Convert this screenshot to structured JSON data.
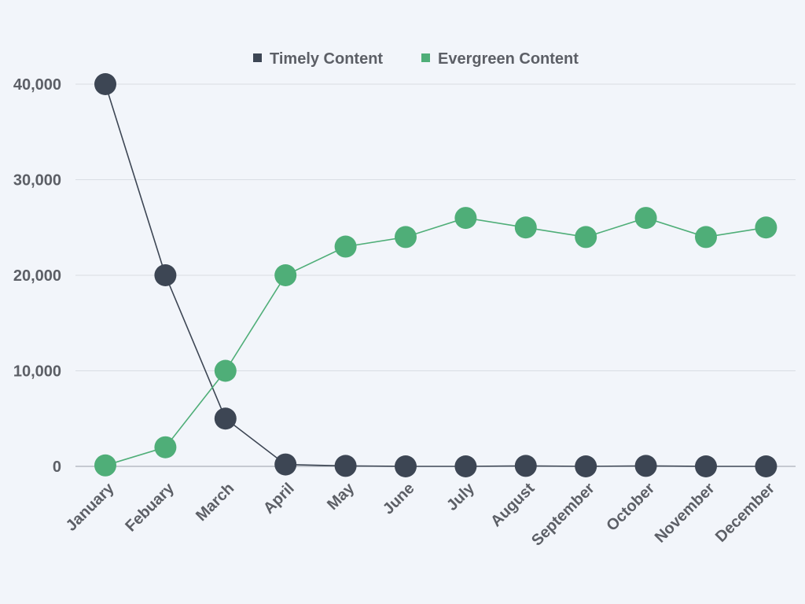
{
  "chart_data": {
    "type": "line",
    "title": "",
    "xlabel": "",
    "ylabel": "",
    "categories": [
      "January",
      "Febuary",
      "March",
      "April",
      "May",
      "June",
      "July",
      "August",
      "September",
      "October",
      "November",
      "December"
    ],
    "ylim": [
      0,
      40000
    ],
    "yticks": [
      0,
      10000,
      20000,
      30000,
      40000
    ],
    "ytick_labels": [
      "0",
      "10,000",
      "20,000",
      "30,000",
      "40,000"
    ],
    "grid": true,
    "legend_position": "top",
    "series": [
      {
        "name": "Timely Content",
        "color": "#3d4654",
        "values": [
          40000,
          20000,
          5000,
          200,
          50,
          0,
          0,
          50,
          0,
          50,
          0,
          0
        ]
      },
      {
        "name": "Evergreen Content",
        "color": "#4fae78",
        "values": [
          100,
          2000,
          10000,
          20000,
          23000,
          24000,
          26000,
          25000,
          24000,
          26000,
          24000,
          25000
        ]
      }
    ]
  }
}
